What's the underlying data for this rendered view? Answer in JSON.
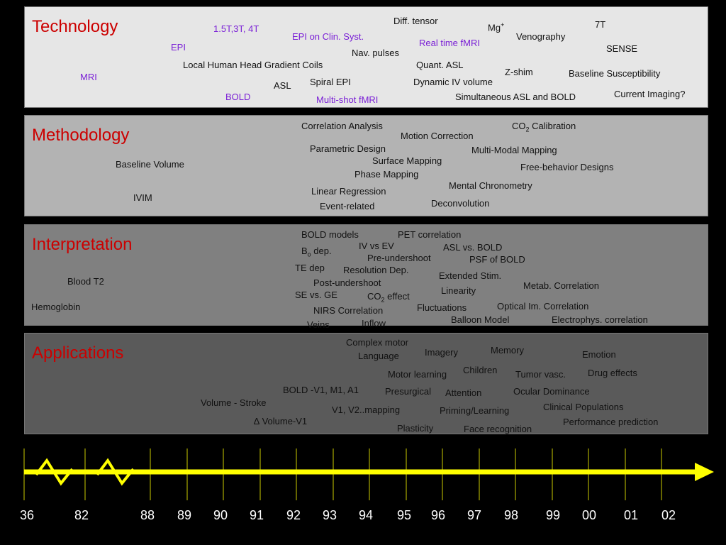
{
  "colors": {
    "background": "#000000",
    "heading": "#cc0000",
    "term": "#111111",
    "term_highlight": "#7a1fd6",
    "timeline": "#ffff00",
    "tick": "#cccc00",
    "year_label": "#ffffff"
  },
  "panels": {
    "technology": {
      "title": "Technology",
      "items": [
        {
          "text": "Diff. tensor"
        },
        {
          "text": "Mg",
          "sup": "+"
        },
        {
          "text": "7T"
        },
        {
          "text": "1.5T,3T, 4T",
          "highlight": true
        },
        {
          "text": "EPI on Clin. Syst.",
          "highlight": true
        },
        {
          "text": "Venography"
        },
        {
          "text": "EPI",
          "highlight": true
        },
        {
          "text": "Real time fMRI",
          "highlight": true
        },
        {
          "text": "SENSE"
        },
        {
          "text": "Nav. pulses"
        },
        {
          "text": "Local Human Head Gradient Coils"
        },
        {
          "text": "Quant. ASL"
        },
        {
          "text": "MRI",
          "highlight": true
        },
        {
          "text": "Z-shim"
        },
        {
          "text": "Baseline Susceptibility"
        },
        {
          "text": "Spiral EPI"
        },
        {
          "text": "Dynamic IV volume"
        },
        {
          "text": "ASL"
        },
        {
          "text": "BOLD",
          "highlight": true
        },
        {
          "text": "Current Imaging?"
        },
        {
          "text": "Simultaneous ASL and BOLD"
        },
        {
          "text": "Multi-shot fMRI",
          "highlight": true
        }
      ]
    },
    "methodology": {
      "title": "Methodology",
      "items": [
        {
          "text": "Correlation Analysis"
        },
        {
          "text": "CO",
          "sub": "2",
          "after": " Calibration"
        },
        {
          "text": "Motion Correction"
        },
        {
          "text": "Parametric Design"
        },
        {
          "text": "Multi-Modal Mapping"
        },
        {
          "text": "Surface Mapping"
        },
        {
          "text": "Baseline Volume"
        },
        {
          "text": "Free-behavior Designs"
        },
        {
          "text": "Phase Mapping"
        },
        {
          "text": "Mental Chronometry"
        },
        {
          "text": "Linear Regression"
        },
        {
          "text": "IVIM"
        },
        {
          "text": "Deconvolution"
        },
        {
          "text": "Event-related"
        }
      ]
    },
    "interpretation": {
      "title": "Interpretation",
      "items": [
        {
          "text": "BOLD models"
        },
        {
          "text": "PET correlation"
        },
        {
          "text": "IV vs EV"
        },
        {
          "text": "ASL vs. BOLD"
        },
        {
          "text": "B",
          "sub": "o",
          "after": " dep."
        },
        {
          "text": "Pre-undershoot"
        },
        {
          "text": "PSF of BOLD"
        },
        {
          "text": "TE dep"
        },
        {
          "text": "Resolution Dep."
        },
        {
          "text": "Extended Stim."
        },
        {
          "text": "Blood T2"
        },
        {
          "text": "Post-undershoot"
        },
        {
          "text": "Metab. Correlation"
        },
        {
          "text": "Linearity"
        },
        {
          "text": "SE vs. GE"
        },
        {
          "text": "CO",
          "sub": "2",
          "after": " effect"
        },
        {
          "text": "Hemoglobin"
        },
        {
          "text": "Optical Im. Correlation"
        },
        {
          "text": "Fluctuations"
        },
        {
          "text": "NIRS Correlation"
        },
        {
          "text": "Balloon Model"
        },
        {
          "text": "Electrophys. correlation"
        },
        {
          "text": "Inflow"
        },
        {
          "text": "Veins"
        }
      ]
    },
    "applications": {
      "title": "Applications",
      "items": [
        {
          "text": "Complex motor"
        },
        {
          "text": "Memory"
        },
        {
          "text": "Imagery"
        },
        {
          "text": "Emotion"
        },
        {
          "text": "Language"
        },
        {
          "text": "Children"
        },
        {
          "text": "Motor learning"
        },
        {
          "text": "Tumor vasc."
        },
        {
          "text": "Drug effects"
        },
        {
          "text": "BOLD -V1, M1, A1"
        },
        {
          "text": "Presurgical"
        },
        {
          "text": "Attention"
        },
        {
          "text": "Ocular Dominance"
        },
        {
          "text": "Volume - Stroke"
        },
        {
          "text": "Clinical Populations"
        },
        {
          "text": "V1, V2..mapping"
        },
        {
          "text": "Priming/Learning"
        },
        {
          "text": "∆ Volume-V1"
        },
        {
          "text": "Performance prediction"
        },
        {
          "text": "Plasticity"
        },
        {
          "text": "Face recognition"
        }
      ]
    }
  },
  "timeline": {
    "years": [
      "36",
      "82",
      "88",
      "89",
      "90",
      "91",
      "92",
      "93",
      "94",
      "95",
      "96",
      "97",
      "98",
      "99",
      "00",
      "01",
      "02"
    ]
  }
}
